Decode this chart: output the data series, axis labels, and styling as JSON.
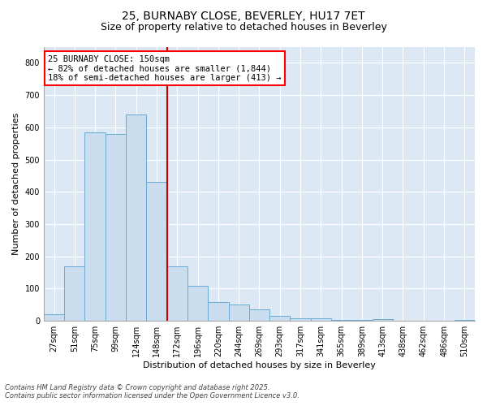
{
  "title_line1": "25, BURNABY CLOSE, BEVERLEY, HU17 7ET",
  "title_line2": "Size of property relative to detached houses in Beverley",
  "xlabel": "Distribution of detached houses by size in Beverley",
  "ylabel": "Number of detached properties",
  "bar_color": "#c9ddef",
  "bar_edge_color": "#6aabd2",
  "bg_color": "#dde8f5",
  "grid_color": "#c0cfe0",
  "vline_color": "#cc0000",
  "annotation_title": "25 BURNABY CLOSE: 150sqm",
  "annotation_line1": "← 82% of detached houses are smaller (1,844)",
  "annotation_line2": "18% of semi-detached houses are larger (413) →",
  "categories": [
    "27sqm",
    "51sqm",
    "75sqm",
    "99sqm",
    "124sqm",
    "148sqm",
    "172sqm",
    "196sqm",
    "220sqm",
    "244sqm",
    "269sqm",
    "293sqm",
    "317sqm",
    "341sqm",
    "365sqm",
    "389sqm",
    "413sqm",
    "438sqm",
    "462sqm",
    "486sqm",
    "510sqm"
  ],
  "values": [
    20,
    168,
    585,
    580,
    640,
    430,
    170,
    108,
    58,
    50,
    35,
    15,
    8,
    7,
    3,
    2,
    5,
    1,
    0,
    0,
    2
  ],
  "ylim": [
    0,
    850
  ],
  "yticks": [
    0,
    100,
    200,
    300,
    400,
    500,
    600,
    700,
    800
  ],
  "title_fontsize": 10,
  "subtitle_fontsize": 9,
  "ylabel_fontsize": 8,
  "xlabel_fontsize": 8,
  "tick_fontsize": 7,
  "footer_line1": "Contains HM Land Registry data © Crown copyright and database right 2025.",
  "footer_line2": "Contains public sector information licensed under the Open Government Licence v3.0."
}
